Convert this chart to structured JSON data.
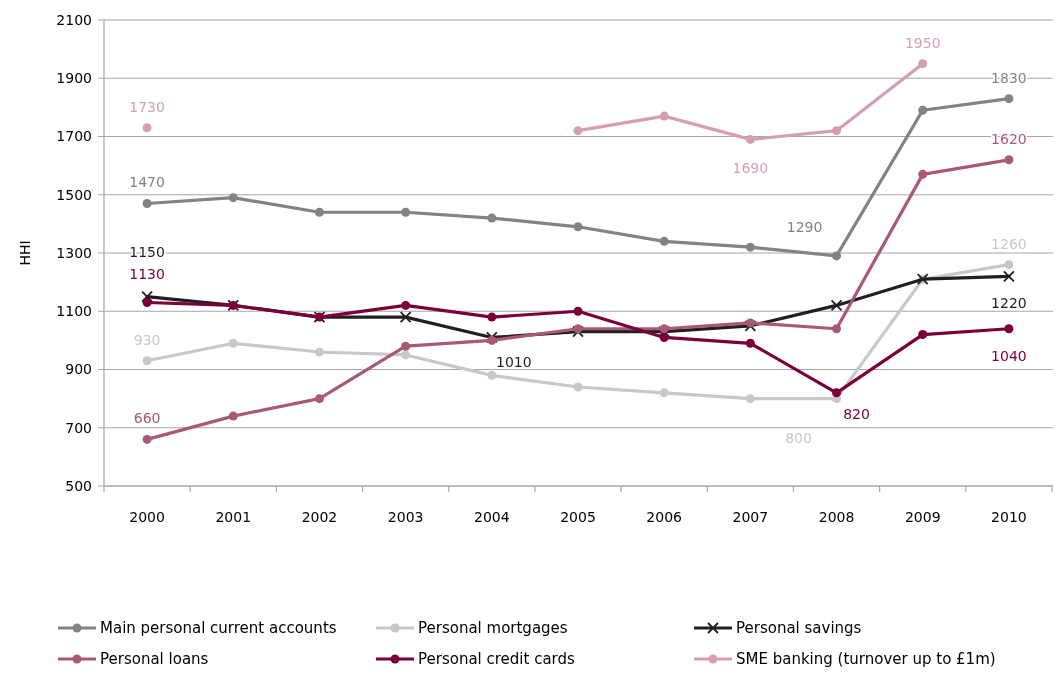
{
  "chart_data": {
    "type": "line",
    "ylabel": "HHI",
    "categories": [
      "2000",
      "2001",
      "2002",
      "2003",
      "2004",
      "2005",
      "2006",
      "2007",
      "2008",
      "2009",
      "2010"
    ],
    "ylim": [
      500,
      2100
    ],
    "yticks": [
      500,
      700,
      900,
      1100,
      1300,
      1500,
      1700,
      1900,
      2100
    ],
    "grid": "y",
    "legend": "bottom",
    "marker": "circle",
    "line_style": "solid",
    "series": [
      {
        "name": "Main personal current accounts",
        "color": "#838387",
        "values": [
          1470,
          1490,
          1440,
          1440,
          1420,
          1390,
          1340,
          1320,
          1290,
          1790,
          1830
        ],
        "value_labels": [
          "1470",
          null,
          null,
          null,
          null,
          null,
          null,
          null,
          "1290",
          null,
          "1830"
        ]
      },
      {
        "name": "Personal mortgages",
        "color": "#c8c8c8",
        "values": [
          930,
          990,
          960,
          950,
          880,
          840,
          820,
          800,
          800,
          1210,
          1260
        ],
        "value_labels": [
          "930",
          null,
          null,
          null,
          null,
          null,
          null,
          null,
          "800",
          null,
          "1260"
        ]
      },
      {
        "name": "Personal savings",
        "color": "#231f20",
        "marker": "cross",
        "values": [
          1150,
          1120,
          1080,
          1080,
          1010,
          1030,
          1030,
          1050,
          1120,
          1210,
          1220
        ],
        "value_labels": [
          "1150",
          null,
          null,
          null,
          "1010",
          null,
          null,
          null,
          null,
          null,
          "1220"
        ]
      },
      {
        "name": "Personal loans",
        "color": "#a85a75",
        "values": [
          660,
          740,
          800,
          980,
          1000,
          1040,
          1040,
          1060,
          1040,
          1570,
          1620
        ],
        "value_labels": [
          "660",
          null,
          null,
          null,
          null,
          null,
          null,
          null,
          null,
          null,
          "1620"
        ]
      },
      {
        "name": "Personal credit cards",
        "color": "#7a0039",
        "values": [
          1130,
          1120,
          1080,
          1120,
          1080,
          1100,
          1010,
          990,
          820,
          1020,
          1040
        ],
        "value_labels": [
          "1130",
          null,
          null,
          null,
          null,
          null,
          null,
          null,
          "820",
          null,
          "1040"
        ]
      },
      {
        "name": "SME banking (turnover up to £1m)",
        "color": "#d4a0b0",
        "values": [
          1730,
          null,
          null,
          null,
          null,
          1720,
          1770,
          1690,
          1720,
          1950,
          null
        ],
        "value_labels": [
          "1730",
          null,
          null,
          null,
          null,
          null,
          null,
          "1690",
          null,
          "1950",
          null
        ]
      }
    ]
  }
}
